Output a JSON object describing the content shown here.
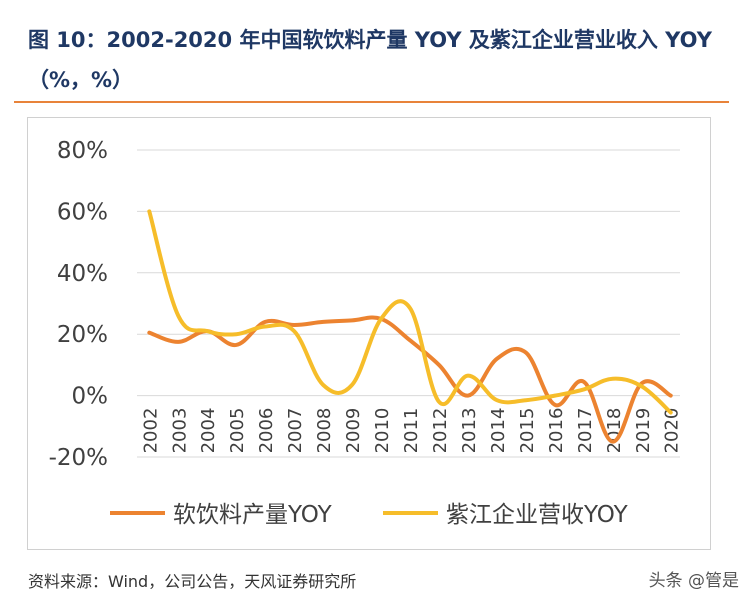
{
  "title": "图 10：2002-2020 年中国软饮料产量 YOY 及紫江企业营业收入 YOY（%，%）",
  "source": "资料来源：Wind，公司公告，天风证券研究所",
  "watermark": "头条 @管是",
  "chart_data": {
    "type": "line",
    "categories": [
      "2002",
      "2003",
      "2004",
      "2005",
      "2006",
      "2007",
      "2008",
      "2009",
      "2010",
      "2011",
      "2012",
      "2013",
      "2014",
      "2015",
      "2016",
      "2017",
      "2018",
      "2019",
      "2020"
    ],
    "ylim": [
      -20,
      80
    ],
    "yticks": [
      "-20%",
      "0%",
      "20%",
      "40%",
      "60%",
      "80%"
    ],
    "ytick_values": [
      -20,
      0,
      20,
      40,
      60,
      80
    ],
    "grid": true,
    "legend_position": "bottom",
    "series": [
      {
        "name": "软饮料产量YOY",
        "color": "#ec8330",
        "values": [
          20.5,
          17.5,
          21,
          16.5,
          24,
          23,
          24,
          24.5,
          25,
          18,
          10,
          0,
          12,
          14,
          -3,
          4.5,
          -15,
          4,
          0
        ]
      },
      {
        "name": "紫江企业营收YOY",
        "color": "#f6bd2a",
        "values": [
          60,
          26,
          21,
          20,
          22.5,
          21,
          3.5,
          3.5,
          25,
          28.5,
          -2,
          6.5,
          -1.5,
          -1.5,
          0,
          2,
          5.5,
          3,
          -5.5
        ]
      }
    ]
  }
}
